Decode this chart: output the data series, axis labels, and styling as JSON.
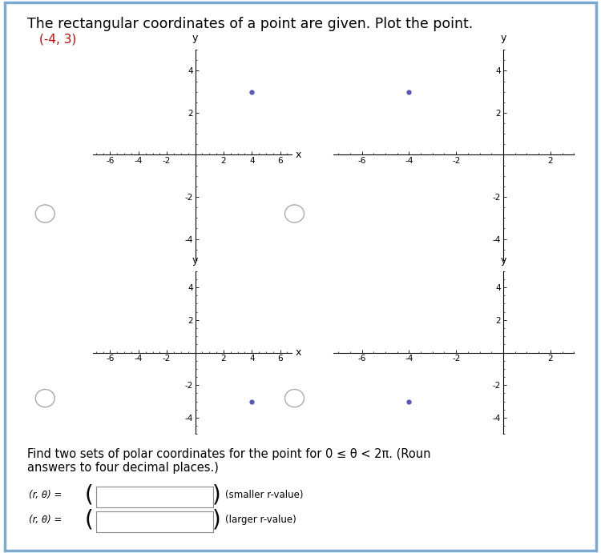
{
  "title": "The rectangular coordinates of a point are given. Plot the point.",
  "subtitle": "(-4, 3)",
  "subtitle_color": "#cc0000",
  "point_color": "#5555bb",
  "bg_color": "#ffffff",
  "border_color": "#7aaad0",
  "font_size_title": 12.5,
  "font_size_subtitle": 11,
  "plots": [
    {
      "point_x": 4,
      "point_y": 3,
      "xlim": [
        -7.2,
        6.8
      ],
      "has_radio": true,
      "show_x_label": true,
      "xticks": [
        -6,
        -4,
        -2,
        2,
        4,
        6
      ],
      "yticks": [
        -4,
        -2,
        2,
        4
      ]
    },
    {
      "point_x": -4,
      "point_y": 3,
      "xlim": [
        -7.2,
        3.0
      ],
      "has_radio": false,
      "show_x_label": false,
      "xticks": [
        -6,
        -4,
        -2,
        2
      ],
      "yticks": [
        -4,
        -2,
        2,
        4
      ]
    },
    {
      "point_x": 4,
      "point_y": -3,
      "xlim": [
        -7.2,
        6.8
      ],
      "has_radio": true,
      "show_x_label": true,
      "xticks": [
        -6,
        -4,
        -2,
        2,
        4,
        6
      ],
      "yticks": [
        -4,
        -2,
        2,
        4
      ]
    },
    {
      "point_x": -4,
      "point_y": -3,
      "xlim": [
        -7.2,
        3.0
      ],
      "has_radio": false,
      "show_x_label": false,
      "xticks": [
        -6,
        -4,
        -2,
        2
      ],
      "yticks": [
        -4,
        -2,
        2,
        4
      ]
    }
  ],
  "ylim": [
    -5.0,
    5.0
  ],
  "bottom_text": "Find two sets of polar coordinates for the point for 0 ≤ θ < 2π. (Roun\nanswers to four decimal places.)",
  "label_r_theta": "(r, θ) =",
  "note1": "(smaller r-value)",
  "note2": "(larger r-value)"
}
